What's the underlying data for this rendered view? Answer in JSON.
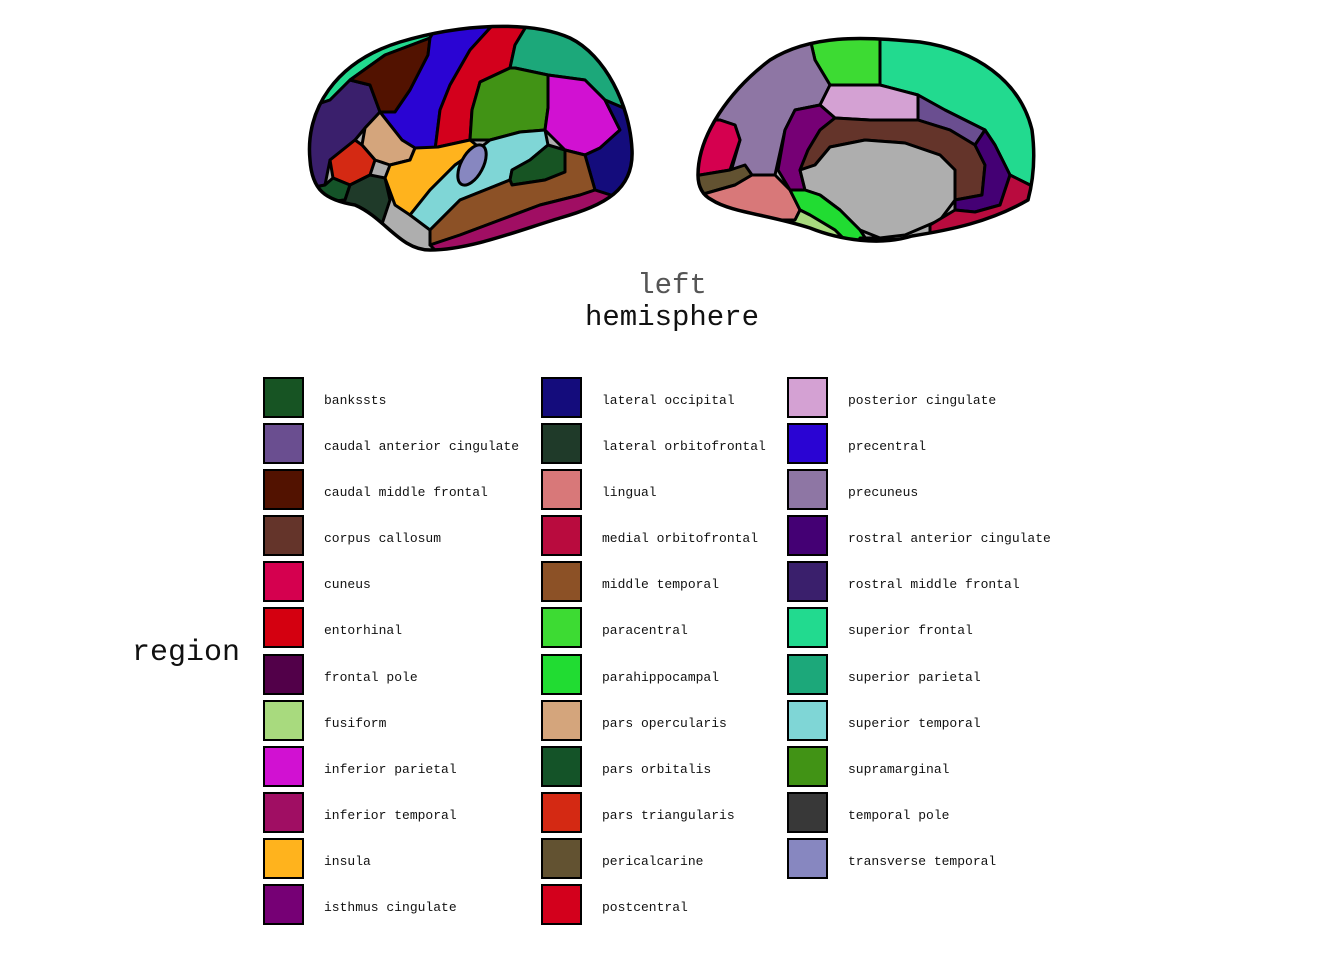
{
  "title_line1": "left",
  "title_line2": "hemisphere",
  "legend_title": "region",
  "legend_columns": [
    [
      {
        "label": "bankssts",
        "color": "#175423"
      },
      {
        "label": "caudal anterior cingulate",
        "color": "#6a4e90"
      },
      {
        "label": "caudal middle frontal",
        "color": "#521200"
      },
      {
        "label": "corpus callosum",
        "color": "#64342a"
      },
      {
        "label": "cuneus",
        "color": "#d5004f"
      },
      {
        "label": "entorhinal",
        "color": "#d40010"
      },
      {
        "label": "frontal pole",
        "color": "#520049"
      },
      {
        "label": "fusiform",
        "color": "#a8da7e"
      },
      {
        "label": "inferior parietal",
        "color": "#d111d2"
      },
      {
        "label": "inferior temporal",
        "color": "#a00e63"
      },
      {
        "label": "insula",
        "color": "#ffb31d"
      },
      {
        "label": "isthmus cingulate",
        "color": "#760075"
      }
    ],
    [
      {
        "label": "lateral occipital",
        "color": "#140c7c"
      },
      {
        "label": "lateral orbitofrontal",
        "color": "#1f3a29"
      },
      {
        "label": "lingual",
        "color": "#d87879"
      },
      {
        "label": "medial orbitofrontal",
        "color": "#b90b3e"
      },
      {
        "label": "middle temporal",
        "color": "#8c5126"
      },
      {
        "label": "paracentral",
        "color": "#3ddb33"
      },
      {
        "label": "parahippocampal",
        "color": "#21dc32"
      },
      {
        "label": "pars opercularis",
        "color": "#d4a57c"
      },
      {
        "label": "pars orbitalis",
        "color": "#145328"
      },
      {
        "label": "pars triangularis",
        "color": "#d42913"
      },
      {
        "label": "pericalcarine",
        "color": "#625231"
      },
      {
        "label": "postcentral",
        "color": "#d3001c"
      }
    ],
    [
      {
        "label": "posterior cingulate",
        "color": "#d4a1d3"
      },
      {
        "label": "precentral",
        "color": "#2a04d3"
      },
      {
        "label": "precuneus",
        "color": "#8e76a4"
      },
      {
        "label": "rostral anterior cingulate",
        "color": "#440074"
      },
      {
        "label": "rostral middle frontal",
        "color": "#3a1f6c"
      },
      {
        "label": "superior frontal",
        "color": "#22da8f"
      },
      {
        "label": "superior parietal",
        "color": "#1ca87a"
      },
      {
        "label": "superior temporal",
        "color": "#7fd6d6"
      },
      {
        "label": "supramarginal",
        "color": "#419315"
      },
      {
        "label": "temporal pole",
        "color": "#383838"
      },
      {
        "label": "transverse temporal",
        "color": "#8787c0"
      }
    ]
  ],
  "unlabeled_color": "#aeaeae"
}
